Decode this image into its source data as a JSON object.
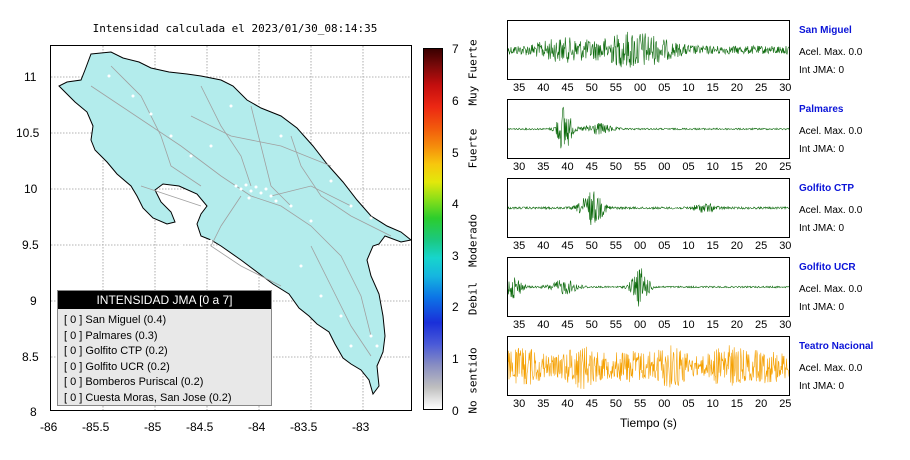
{
  "map": {
    "title": "Intensidad calculada el 2023/01/30_08:14:35",
    "x_ticks": [
      "-86",
      "-85.5",
      "-85",
      "-84.5",
      "-84",
      "-83.5",
      "-83"
    ],
    "y_ticks": [
      "11",
      "10.5",
      "10",
      "9.5",
      "9",
      "8.5",
      "8"
    ],
    "land_color": "#b3ecec"
  },
  "legend": {
    "header": "INTENSIDAD JMA [0 a 7]",
    "rows": [
      "[ 0 ]  San Miguel (0.4)",
      "[ 0 ]  Palmares (0.3)",
      "[ 0 ]  Golfito CTP (0.2)",
      "[ 0 ]  Golfito UCR (0.2)",
      "[ 0 ]  Bomberos Puriscal (0.2)",
      "[ 0 ]  Cuesta Moras, San Jose (0.2)"
    ]
  },
  "colorbar": {
    "labels": [
      "0",
      "1",
      "2",
      "3",
      "4",
      "5",
      "6",
      "7"
    ],
    "words": {
      "no_sentido": "No sentido",
      "debil": "Debil",
      "moderado": "Moderado",
      "fuerte": "Fuerte",
      "muy_fuerte": "Muy Fuerte"
    }
  },
  "stations": [
    {
      "name": "San Miguel",
      "acel": "Acel. Max. 0.0",
      "int": "Int JMA: 0",
      "color": "#0e6b0e",
      "ticks": [
        "35",
        "40",
        "45",
        "50",
        "55",
        "00",
        "05",
        "10",
        "15",
        "20",
        "25",
        "30"
      ]
    },
    {
      "name": "Palmares",
      "acel": "Acel. Max. 0.0",
      "int": "Int JMA: 0",
      "color": "#0e6b0e",
      "ticks": [
        "30",
        "35",
        "40",
        "45",
        "50",
        "55",
        "00",
        "05",
        "10",
        "15",
        "20",
        "25"
      ]
    },
    {
      "name": "Golfito CTP",
      "acel": "Acel. Max. 0.0",
      "int": "Int JMA: 0",
      "color": "#0e6b0e",
      "ticks": [
        "35",
        "40",
        "45",
        "50",
        "55",
        "00",
        "05",
        "10",
        "15",
        "20",
        "25",
        "30"
      ]
    },
    {
      "name": "Golfito UCR",
      "acel": "Acel. Max. 0.0",
      "int": "Int JMA: 0",
      "color": "#0e6b0e",
      "ticks": [
        "35",
        "40",
        "45",
        "50",
        "55",
        "00",
        "05",
        "10",
        "15",
        "20",
        "25",
        "30"
      ]
    },
    {
      "name": "Teatro Nacional",
      "acel": "Acel. Max. 0.0",
      "int": "Int JMA: 0",
      "color": "#f5a000",
      "ticks": [
        "30",
        "35",
        "40",
        "45",
        "50",
        "55",
        "00",
        "05",
        "10",
        "15",
        "20",
        "25"
      ]
    }
  ],
  "time_axis_label": "Tiempo (s)"
}
